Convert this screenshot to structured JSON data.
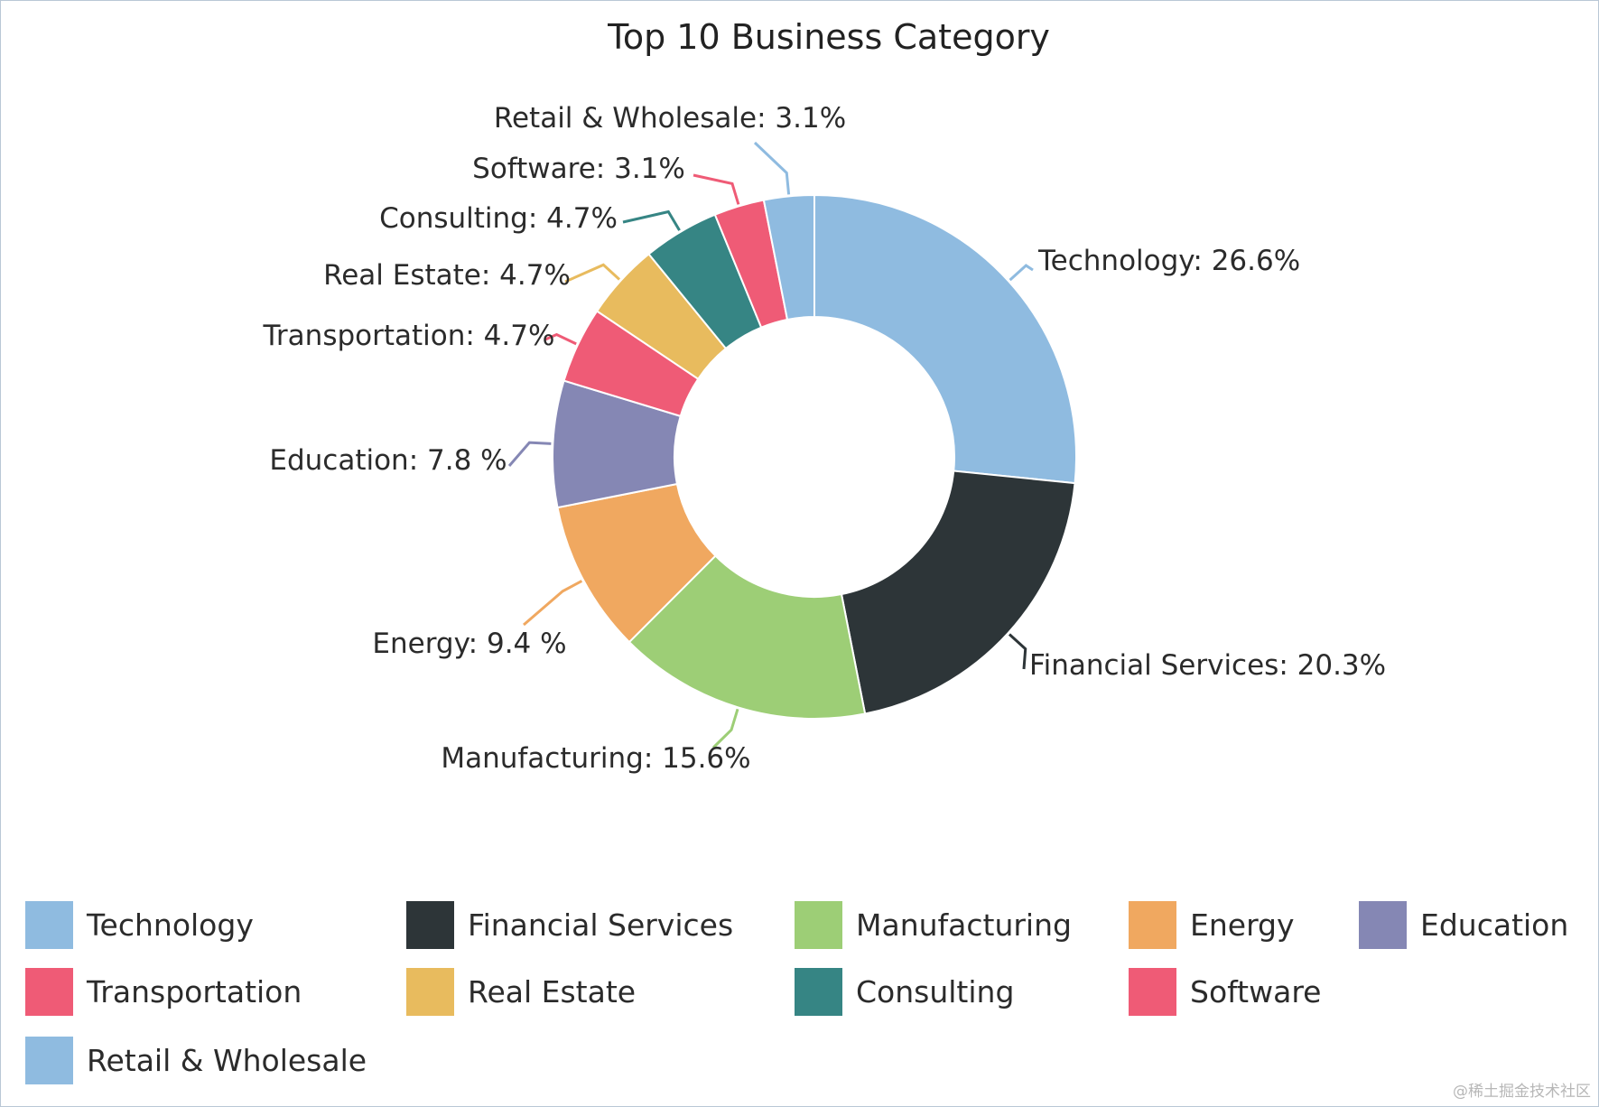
{
  "chart_data": {
    "type": "pie",
    "variant": "donut",
    "title": "Top 10 Business Category",
    "legend_position": "bottom",
    "slices": [
      {
        "name": "Technology",
        "value": 26.6,
        "label": "Technology: 26.6%",
        "color": "#8fbbe0"
      },
      {
        "name": "Financial Services",
        "value": 20.3,
        "label": "Financial Services: 20.3%",
        "color": "#2d3538"
      },
      {
        "name": "Manufacturing",
        "value": 15.6,
        "label": "Manufacturing: 15.6%",
        "color": "#9dce76"
      },
      {
        "name": "Energy",
        "value": 9.4,
        "label": "Energy: 9.4 %",
        "color": "#f0a860"
      },
      {
        "name": "Education",
        "value": 7.8,
        "label": "Education: 7.8 %",
        "color": "#8587b4"
      },
      {
        "name": "Transportation",
        "value": 4.7,
        "label": "Transportation: 4.7%",
        "color": "#ef5b76"
      },
      {
        "name": "Real Estate",
        "value": 4.7,
        "label": "Real Estate: 4.7%",
        "color": "#e8bb5e"
      },
      {
        "name": "Consulting",
        "value": 4.7,
        "label": "Consulting: 4.7%",
        "color": "#368584"
      },
      {
        "name": "Software",
        "value": 3.1,
        "label": "Software: 3.1%",
        "color": "#ef5b76"
      },
      {
        "name": "Retail & Wholesale",
        "value": 3.1,
        "label": "Retail & Wholesale: 3.1%",
        "color": "#8fbbe0"
      }
    ]
  },
  "watermark": "@稀土掘金技术社区"
}
